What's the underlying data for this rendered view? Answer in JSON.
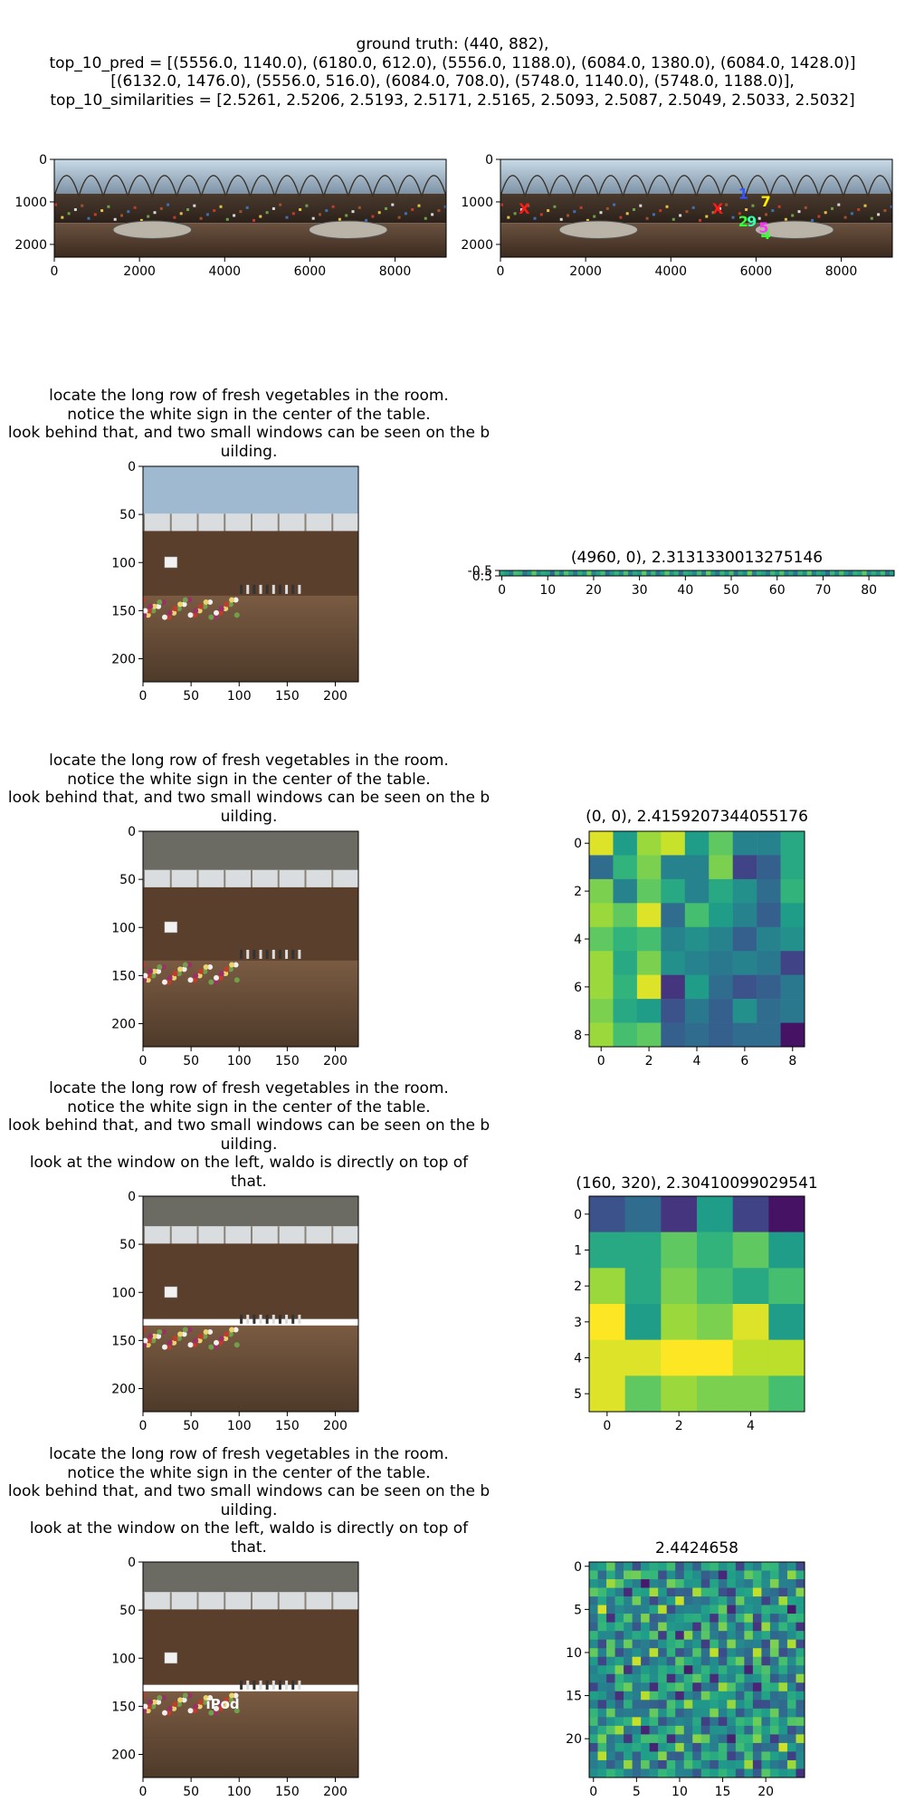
{
  "header": {
    "lines": [
      "ground truth: (440, 882),",
      "top_10_pred = [(5556.0, 1140.0), (6180.0, 612.0), (5556.0, 1188.0), (6084.0, 1380.0), (6084.0, 1428.0)]",
      "[(6132.0, 1476.0), (5556.0, 516.0), (6084.0, 708.0), (5748.0, 1140.0), (5748.0, 1188.0)],",
      "top_10_similarities = [2.5261, 2.5206, 2.5193, 2.5171, 2.5165, 2.5093, 2.5087, 2.5049, 2.5033, 2.5032]"
    ]
  },
  "captions": {
    "row1": [
      "locate the long row of fresh vegetables in the room.",
      "notice the white sign in the center of the table.",
      "look behind that, and two small windows can be seen on the b",
      "uilding."
    ],
    "row2": [
      "locate the long row of fresh vegetables in the room.",
      "notice the white sign in the center of the table.",
      "look behind that, and two small windows can be seen on the b",
      "uilding."
    ],
    "row3": [
      "locate the long row of fresh vegetables in the room.",
      "notice the white sign in the center of the table.",
      "look behind that, and two small windows can be seen on the b",
      "uilding.",
      "look at the window on the left, waldo is directly on top of",
      "that."
    ],
    "row4": [
      "locate the long row of fresh vegetables in the room.",
      "notice the white sign in the center of the table.",
      "look behind that, and two small windows can be seen on the b",
      "uilding.",
      "look at the window on the left, waldo is directly on top of",
      "that."
    ]
  },
  "overlay_label": "iPod",
  "chart_data": [
    {
      "id": "pano-left",
      "type": "image",
      "x_ticks": [
        0,
        2000,
        4000,
        6000,
        8000
      ],
      "y_ticks": [
        0,
        1000,
        2000
      ],
      "xlim": [
        0,
        9200
      ],
      "ylim": [
        2300,
        0
      ]
    },
    {
      "id": "pano-right",
      "type": "image",
      "x_ticks": [
        0,
        2000,
        4000,
        6000,
        8000
      ],
      "y_ticks": [
        0,
        1000,
        2000
      ],
      "xlim": [
        0,
        9200
      ],
      "ylim": [
        2300,
        0
      ],
      "markers": [
        {
          "label": "X",
          "x": 560,
          "y": 1150,
          "color": "#ff1a1a"
        },
        {
          "label": "X",
          "x": 5100,
          "y": 1150,
          "color": "#ff1a1a"
        },
        {
          "label": "1",
          "x": 5700,
          "y": 800,
          "color": "#3355ff"
        },
        {
          "label": "7",
          "x": 6230,
          "y": 980,
          "color": "#ffee00"
        },
        {
          "label": "2",
          "x": 5700,
          "y": 1450,
          "color": "#33ff33"
        },
        {
          "label": "9",
          "x": 5900,
          "y": 1450,
          "color": "#33ffaa"
        },
        {
          "label": "4",
          "x": 6230,
          "y": 1750,
          "color": "#33ff33"
        },
        {
          "label": "5",
          "x": 6180,
          "y": 1600,
          "color": "#ff33ff"
        }
      ]
    },
    {
      "id": "crop-1",
      "type": "image",
      "x_ticks": [
        0,
        50,
        100,
        150,
        200
      ],
      "y_ticks": [
        0,
        50,
        100,
        150,
        200
      ],
      "xlim": [
        0,
        224
      ],
      "ylim": [
        224,
        0
      ]
    },
    {
      "id": "strip",
      "type": "heatmap",
      "title": "(4960, 0), 2.3131330013275146",
      "x_ticks": [
        0,
        10,
        20,
        30,
        40,
        50,
        60,
        70,
        80
      ],
      "y_ticks": [
        -0.5,
        0.5
      ],
      "xlim": [
        -0.5,
        85.5
      ],
      "ylim": [
        0.5,
        -0.5
      ],
      "values": [
        0.62,
        0.55,
        0.41,
        0.7,
        0.66,
        0.38,
        0.52,
        0.74,
        0.49,
        0.61,
        0.57,
        0.33,
        0.68,
        0.45,
        0.72,
        0.59,
        0.4,
        0.63,
        0.51,
        0.77,
        0.46,
        0.58,
        0.69,
        0.36,
        0.54,
        0.65,
        0.48,
        0.71,
        0.42,
        0.6,
        0.53,
        0.75,
        0.44,
        0.67,
        0.39,
        0.56,
        0.73,
        0.5,
        0.64,
        0.35,
        0.62,
        0.58,
        0.47,
        0.69,
        0.43,
        0.76,
        0.55,
        0.4,
        0.66,
        0.52,
        0.7,
        0.37,
        0.6,
        0.49,
        0.78,
        0.45,
        0.63,
        0.57,
        0.41,
        0.68,
        0.54,
        0.72,
        0.46,
        0.59,
        0.39,
        0.65,
        0.51,
        0.74,
        0.44,
        0.61,
        0.56,
        0.36,
        0.67,
        0.48,
        0.71,
        0.53,
        0.42,
        0.64,
        0.58,
        0.75,
        0.47,
        0.62,
        0.5,
        0.69,
        0.38,
        0.57
      ]
    },
    {
      "id": "crop-2",
      "type": "image",
      "x_ticks": [
        0,
        50,
        100,
        150,
        200
      ],
      "y_ticks": [
        0,
        50,
        100,
        150,
        200
      ],
      "xlim": [
        0,
        224
      ],
      "ylim": [
        224,
        0
      ]
    },
    {
      "id": "heat-9x9",
      "type": "heatmap",
      "title": "(0, 0), 2.4159207344055176",
      "x_ticks": [
        0,
        2,
        4,
        6,
        8
      ],
      "y_ticks": [
        0,
        2,
        4,
        6,
        8
      ],
      "xlim": [
        -0.5,
        8.5
      ],
      "ylim": [
        8.5,
        -0.5
      ],
      "values": [
        [
          0.95,
          0.55,
          0.85,
          0.92,
          0.55,
          0.75,
          0.45,
          0.45,
          0.6
        ],
        [
          0.35,
          0.65,
          0.8,
          0.45,
          0.45,
          0.8,
          0.2,
          0.3,
          0.6
        ],
        [
          0.8,
          0.45,
          0.75,
          0.6,
          0.45,
          0.6,
          0.5,
          0.35,
          0.65
        ],
        [
          0.85,
          0.75,
          0.95,
          0.35,
          0.7,
          0.55,
          0.45,
          0.3,
          0.55
        ],
        [
          0.75,
          0.65,
          0.7,
          0.45,
          0.5,
          0.45,
          0.3,
          0.45,
          0.5
        ],
        [
          0.85,
          0.6,
          0.8,
          0.5,
          0.45,
          0.4,
          0.45,
          0.4,
          0.2
        ],
        [
          0.85,
          0.65,
          0.95,
          0.15,
          0.55,
          0.35,
          0.25,
          0.3,
          0.4
        ],
        [
          0.8,
          0.6,
          0.55,
          0.25,
          0.4,
          0.3,
          0.5,
          0.35,
          0.4
        ],
        [
          0.85,
          0.7,
          0.75,
          0.3,
          0.35,
          0.3,
          0.35,
          0.35,
          0.05
        ]
      ]
    },
    {
      "id": "crop-3",
      "type": "image",
      "x_ticks": [
        0,
        50,
        100,
        150,
        200
      ],
      "y_ticks": [
        0,
        50,
        100,
        150,
        200
      ],
      "xlim": [
        0,
        224
      ],
      "ylim": [
        224,
        0
      ]
    },
    {
      "id": "heat-6x6",
      "type": "heatmap",
      "title": "(160, 320), 2.30410099029541",
      "x_ticks": [
        0,
        2,
        4
      ],
      "y_ticks": [
        0,
        1,
        2,
        3,
        4,
        5
      ],
      "xlim": [
        -0.5,
        5.5
      ],
      "ylim": [
        5.5,
        -0.5
      ],
      "values": [
        [
          0.25,
          0.35,
          0.15,
          0.55,
          0.2,
          0.05
        ],
        [
          0.6,
          0.6,
          0.75,
          0.65,
          0.75,
          0.55
        ],
        [
          0.85,
          0.6,
          0.8,
          0.7,
          0.6,
          0.7
        ],
        [
          1.0,
          0.55,
          0.85,
          0.8,
          0.95,
          0.55
        ],
        [
          0.95,
          0.95,
          1.0,
          1.0,
          0.9,
          0.9
        ],
        [
          0.95,
          0.75,
          0.85,
          0.8,
          0.8,
          0.7
        ]
      ]
    },
    {
      "id": "crop-4",
      "type": "image",
      "x_ticks": [
        0,
        50,
        100,
        150,
        200
      ],
      "y_ticks": [
        0,
        50,
        100,
        150,
        200
      ],
      "xlim": [
        0,
        224
      ],
      "ylim": [
        224,
        0
      ]
    },
    {
      "id": "heat-25x25",
      "type": "heatmap",
      "title": "2.4424658",
      "x_ticks": [
        0,
        5,
        10,
        15,
        20
      ],
      "y_ticks": [
        0,
        5,
        10,
        15,
        20
      ],
      "xlim": [
        -0.5,
        24.5
      ],
      "ylim": [
        24.5,
        -0.5
      ],
      "size": 25
    }
  ]
}
